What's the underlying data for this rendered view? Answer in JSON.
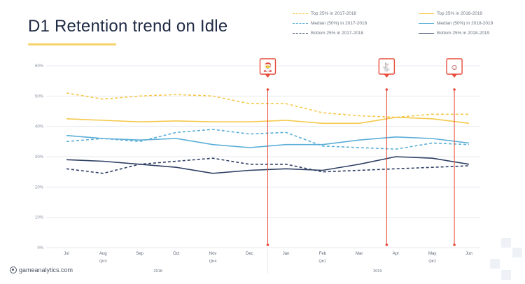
{
  "brand": "gameanalytics.com",
  "colors": {
    "top": "#f5c84c",
    "median": "#5aaed8",
    "bottom": "#2e3f63",
    "marker": "#e74c3c",
    "grid": "#e6e9ef"
  },
  "chart_data": {
    "type": "line",
    "title": "D1 Retention trend on Idle",
    "xlabel": "",
    "ylabel": "",
    "ylim": [
      0,
      60
    ],
    "yticks": [
      "0%",
      "10%",
      "20%",
      "30%",
      "40%",
      "50%",
      "60%"
    ],
    "categories": [
      "Jul",
      "Aug",
      "Sep",
      "Oct",
      "Nov",
      "Dec",
      "Jan",
      "Feb",
      "Mar",
      "Apr",
      "May",
      "Jun"
    ],
    "quarters": [
      {
        "label": "Qtr3",
        "index": 1
      },
      {
        "label": "Qtr4",
        "index": 4
      },
      {
        "label": "Qtr1",
        "index": 7
      },
      {
        "label": "Qtr2",
        "index": 10
      }
    ],
    "years": [
      {
        "label": "2018",
        "index": 2.5
      },
      {
        "label": "2019",
        "index": 8.5
      }
    ],
    "series": [
      {
        "name": "Top 25% in 2017-2018",
        "group": "top",
        "dashed": true,
        "values": [
          51,
          49,
          50,
          50.5,
          50,
          47.5,
          47.5,
          44.5,
          43.5,
          43,
          44,
          44
        ]
      },
      {
        "name": "Median (50%) in 2017-2018",
        "group": "median",
        "dashed": true,
        "values": [
          35,
          36,
          35,
          38,
          39,
          37.5,
          38,
          33.5,
          33,
          32.5,
          34.5,
          34
        ]
      },
      {
        "name": "Bottom 25% in 2017-2018",
        "group": "bottom",
        "dashed": true,
        "values": [
          26,
          24.5,
          27.5,
          28.5,
          29.5,
          27.5,
          27.5,
          25,
          25.5,
          26,
          26.5,
          27
        ]
      },
      {
        "name": "Top 25% in 2018-2019",
        "group": "top",
        "dashed": false,
        "values": [
          42.5,
          42,
          41.5,
          41.8,
          41.5,
          41.5,
          42,
          41,
          41,
          43,
          42.5,
          41
        ]
      },
      {
        "name": "Median (50%) in 2018-2019",
        "group": "median",
        "dashed": false,
        "values": [
          37,
          36,
          35.5,
          36,
          34,
          33,
          34,
          34,
          35.5,
          36.5,
          36,
          34.5
        ]
      },
      {
        "name": "Bottom 25% in 2018-2019",
        "group": "bottom",
        "dashed": false,
        "values": [
          29,
          28.5,
          27.5,
          26.5,
          24.5,
          25.5,
          26,
          25.5,
          27.5,
          30,
          29.5,
          27.5
        ]
      }
    ],
    "markers": [
      {
        "icon": "santa-icon",
        "x": 5.5,
        "symbol": "🎅"
      },
      {
        "icon": "rabbit-icon",
        "x": 8.75,
        "symbol": "🐇"
      },
      {
        "icon": "smiley-icon",
        "x": 10.6,
        "symbol": "☺"
      }
    ],
    "grid": true,
    "legend_position": "top-right"
  }
}
